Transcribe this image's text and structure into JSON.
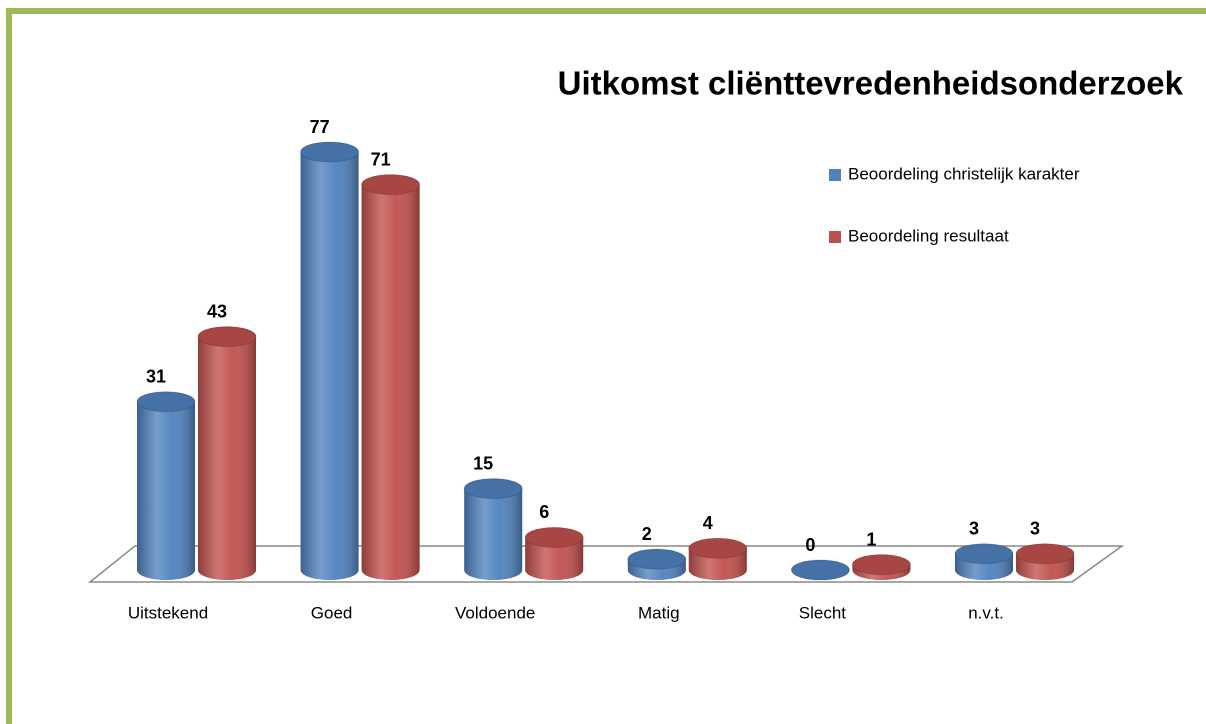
{
  "chart_data": {
    "type": "bar3d",
    "title": "Uitkomst cliënttevredenheidsonderzoek",
    "categories": [
      "Uitstekend",
      "Goed",
      "Voldoende",
      "Matig",
      "Slecht",
      "n.v.t."
    ],
    "series": [
      {
        "name": "Beoordeling christelijk karakter",
        "color": "#4f81bd",
        "values": [
          31,
          77,
          15,
          2,
          0,
          3
        ]
      },
      {
        "name": "Beoordeling resultaat",
        "color": "#c0504d",
        "values": [
          43,
          71,
          6,
          4,
          1,
          3
        ]
      }
    ],
    "legend": "right"
  }
}
